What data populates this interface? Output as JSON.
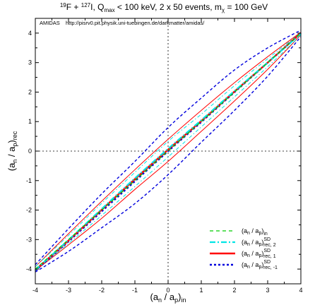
{
  "chart_data": {
    "type": "line",
    "title": {
      "pre": "19",
      "a": "F + ",
      "sup2": "127",
      "b": "I, Q",
      "sub1": "max",
      "c": " < 100 keV, 2 x 50 events, m",
      "sub2": "χ",
      "d": " = 100 GeV"
    },
    "annotation": {
      "label": "AMIDAS",
      "url": "http://pisrv0.pit.physik.uni-tuebingen.de/darkmatter/amidas/"
    },
    "xlabel": {
      "main": "(a",
      "s1": "n",
      "mid": " / a",
      "s2": "p",
      "end": ")",
      "s3": "in"
    },
    "ylabel": {
      "main": "(a",
      "s1": "n",
      "mid": " / a",
      "s2": "p",
      "end": ")",
      "s3": "rec"
    },
    "xlim": [
      -4,
      4
    ],
    "ylim": [
      -4.5,
      4.5
    ],
    "xticks": [
      "-4",
      "-3",
      "-2",
      "-1",
      "0",
      "1",
      "2",
      "3",
      "4"
    ],
    "yticks": [
      "-4",
      "-3",
      "-2",
      "-1",
      "0",
      "1",
      "2",
      "3",
      "4"
    ],
    "x": [
      -4,
      -3,
      -2,
      -1,
      0,
      1,
      2,
      3,
      4
    ],
    "series": [
      {
        "legend": {
          "a": "(a",
          "s1": "n",
          "b": " / a",
          "s2": "p",
          "c": ")",
          "sub": "in",
          "sup": ""
        },
        "color": "#00cc00",
        "style": "dashed",
        "values": [
          -4,
          -3,
          -2,
          -1,
          0,
          1,
          2,
          3,
          4
        ]
      },
      {
        "legend": {
          "a": "(a",
          "s1": "n",
          "b": " / a",
          "s2": "p",
          "c": ")",
          "sub": "rec, 2",
          "sup": "SD"
        },
        "color": "#00e5e5",
        "style": "dashdot",
        "values": [
          -4.03,
          -3.01,
          -1.96,
          -0.92,
          0.08,
          1.05,
          2.04,
          3.0,
          3.98
        ],
        "band": {
          "upper": [
            -3.92,
            -2.86,
            -1.77,
            -0.72,
            0.33,
            1.25,
            2.22,
            3.13,
            4.02
          ],
          "lower": [
            -4.04,
            -3.13,
            -2.18,
            -1.2,
            -0.2,
            0.82,
            1.84,
            2.86,
            3.93
          ]
        }
      },
      {
        "legend": {
          "a": "(a",
          "s1": "n",
          "b": " / a",
          "s2": "p",
          "c": ")",
          "sub": "rec, 1",
          "sup": "SD"
        },
        "color": "#ff0000",
        "style": "solid",
        "values": [
          -4.03,
          -3.03,
          -1.99,
          -0.95,
          0.05,
          1.02,
          2.02,
          3.0,
          4.0
        ],
        "band": {
          "upper": [
            -3.92,
            -2.8,
            -1.7,
            -0.63,
            0.4,
            1.38,
            2.32,
            3.2,
            4.03
          ],
          "lower": [
            -4.05,
            -3.18,
            -2.28,
            -1.3,
            -0.35,
            0.67,
            1.7,
            2.77,
            3.94
          ]
        }
      },
      {
        "legend": {
          "a": "(a",
          "s1": "n",
          "b": " / a",
          "s2": "p",
          "c": ")",
          "sub": "rec, -1",
          "sup": "SD"
        },
        "color": "#0000dd",
        "style": "dotted",
        "values": [
          -4.05,
          -3.06,
          -2.04,
          -1.02,
          0.0,
          0.99,
          2.0,
          3.0,
          4.0
        ],
        "band": {
          "upper": [
            -3.85,
            -2.63,
            -1.45,
            -0.35,
            0.8,
            1.8,
            2.75,
            3.5,
            4.1
          ],
          "lower": [
            -4.1,
            -3.4,
            -2.6,
            -1.78,
            -0.8,
            0.3,
            1.38,
            2.54,
            3.88
          ]
        }
      }
    ],
    "grid": false,
    "legend_position": "bottom-right"
  }
}
